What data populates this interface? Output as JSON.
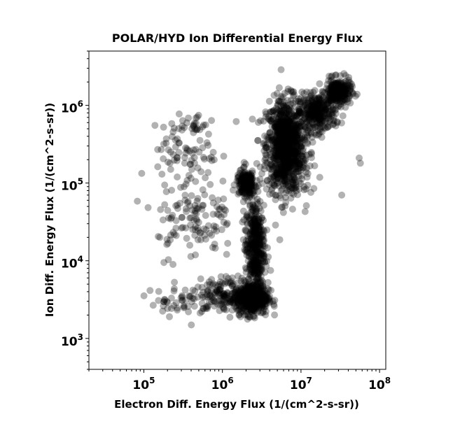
{
  "chart_data": {
    "type": "scatter",
    "title": "POLAR/HYD  Ion Differential Energy Flux",
    "xlabel": "Electron Diff. Energy Flux (1/(cm^2-s-sr))",
    "ylabel": "Ion Diff. Energy Flux (1/(cm^2-s-sr))",
    "xscale": "log",
    "yscale": "log",
    "xlim": [
      20000,
      120000000
    ],
    "ylim": [
      400,
      5000000
    ],
    "x_ticks": [
      {
        "base": "10",
        "exp": "5",
        "value": 100000
      },
      {
        "base": "10",
        "exp": "6",
        "value": 1000000
      },
      {
        "base": "10",
        "exp": "7",
        "value": 10000000
      },
      {
        "base": "10",
        "exp": "8",
        "value": 100000000
      }
    ],
    "y_ticks": [
      {
        "base": "10",
        "exp": "3",
        "value": 1000
      },
      {
        "base": "10",
        "exp": "4",
        "value": 10000
      },
      {
        "base": "10",
        "exp": "5",
        "value": 100000
      },
      {
        "base": "10",
        "exp": "6",
        "value": 1000000
      }
    ],
    "marker_color": "#000000",
    "marker_alpha": 0.3,
    "clusters": [
      {
        "x_center": 6300000,
        "y_center": 300000,
        "x_spread_dex": 0.12,
        "y_spread_dex": 0.3,
        "count": 900
      },
      {
        "x_center": 16000000,
        "y_center": 800000,
        "x_spread_dex": 0.12,
        "y_spread_dex": 0.12,
        "count": 300
      },
      {
        "x_center": 30000000,
        "y_center": 1500000,
        "x_spread_dex": 0.08,
        "y_spread_dex": 0.08,
        "count": 250
      },
      {
        "x_center": 2400000,
        "y_center": 3300,
        "x_spread_dex": 0.1,
        "y_spread_dex": 0.1,
        "count": 500
      },
      {
        "x_center": 2600000,
        "y_center": 15000,
        "x_spread_dex": 0.06,
        "y_spread_dex": 0.3,
        "count": 400
      },
      {
        "x_center": 1200000,
        "y_center": 3800,
        "x_spread_dex": 0.18,
        "y_spread_dex": 0.1,
        "count": 150
      },
      {
        "x_center": 300000,
        "y_center": 3000,
        "x_spread_dex": 0.2,
        "y_spread_dex": 0.1,
        "count": 60
      },
      {
        "x_center": 450000,
        "y_center": 35000,
        "x_spread_dex": 0.25,
        "y_spread_dex": 0.25,
        "count": 120
      },
      {
        "x_center": 350000,
        "y_center": 200000,
        "x_spread_dex": 0.2,
        "y_spread_dex": 0.2,
        "count": 70
      },
      {
        "x_center": 400000,
        "y_center": 550000,
        "x_spread_dex": 0.15,
        "y_spread_dex": 0.08,
        "count": 30
      },
      {
        "x_center": 10000000,
        "y_center": 150000,
        "x_spread_dex": 0.15,
        "y_spread_dex": 0.2,
        "count": 60
      },
      {
        "x_center": 2000000,
        "y_center": 100000,
        "x_spread_dex": 0.06,
        "y_spread_dex": 0.08,
        "count": 200
      }
    ],
    "outliers": [
      [
        25000000,
        2400000
      ],
      [
        55000000,
        210000
      ],
      [
        57000000,
        180000
      ],
      [
        33000000,
        70000
      ],
      [
        180000,
        9500
      ],
      [
        160000,
        20000
      ],
      [
        170000,
        130000
      ],
      [
        1500000,
        620000
      ]
    ]
  }
}
